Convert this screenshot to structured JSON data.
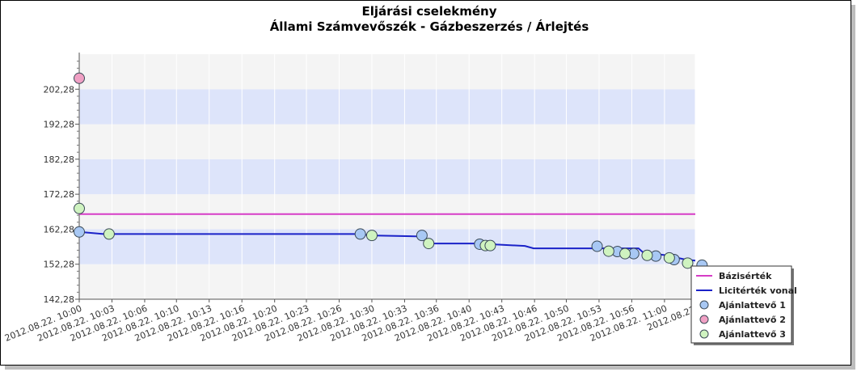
{
  "chart_data": {
    "type": "line",
    "title": "Eljárási cselekmény",
    "subtitle": "Állami Számvevőszék - Gázbeszerzés / Árlejtés",
    "xlabel": "",
    "ylabel": "",
    "ylim": [
      142.28,
      212.28
    ],
    "y_ticks": [
      "142,28",
      "152,28",
      "162,28",
      "172,28",
      "182,28",
      "192,28",
      "202,28"
    ],
    "y_tick_values": [
      142.28,
      152.28,
      162.28,
      172.28,
      182.28,
      192.28,
      202.28
    ],
    "x_range_minutes": [
      0,
      64
    ],
    "x_ticks": [
      {
        "t": 0,
        "label": "2012.08.22. 10:00"
      },
      {
        "t": 3.4,
        "label": "2012.08.22. 10:03"
      },
      {
        "t": 6.8,
        "label": "2012.08.22. 10:06"
      },
      {
        "t": 10.1,
        "label": "2012.08.22. 10:10"
      },
      {
        "t": 13.5,
        "label": "2012.08.22. 10:13"
      },
      {
        "t": 16.9,
        "label": "2012.08.22. 10:16"
      },
      {
        "t": 20.3,
        "label": "2012.08.22. 10:20"
      },
      {
        "t": 23.6,
        "label": "2012.08.22. 10:23"
      },
      {
        "t": 27.0,
        "label": "2012.08.22. 10:26"
      },
      {
        "t": 30.4,
        "label": "2012.08.22. 10:30"
      },
      {
        "t": 33.8,
        "label": "2012.08.22. 10:33"
      },
      {
        "t": 37.1,
        "label": "2012.08.22. 10:36"
      },
      {
        "t": 40.5,
        "label": "2012.08.22. 10:40"
      },
      {
        "t": 43.9,
        "label": "2012.08.22. 10:43"
      },
      {
        "t": 47.3,
        "label": "2012.08.22. 10:46"
      },
      {
        "t": 50.6,
        "label": "2012.08.22. 10:50"
      },
      {
        "t": 54.0,
        "label": "2012.08.22. 10:53"
      },
      {
        "t": 57.4,
        "label": "2012.08.22. 10:56"
      },
      {
        "t": 60.8,
        "label": "2012.08.22. 11:00"
      },
      {
        "t": 64.0,
        "label": "2012.08.22."
      }
    ],
    "grid": true,
    "legend_position": "bottom-right",
    "baseline": {
      "name": "Bázisérték",
      "value": 166.6,
      "color": "#d63cc6"
    },
    "bid_line": {
      "name": "Licitérték vonal",
      "color": "#1a22c8",
      "points": [
        [
          0,
          161.5
        ],
        [
          2.6,
          160.9
        ],
        [
          29.2,
          160.9
        ],
        [
          30.2,
          160.5
        ],
        [
          35.6,
          160.2
        ],
        [
          36.3,
          158.2
        ],
        [
          42.0,
          158.2
        ],
        [
          43.4,
          157.9
        ],
        [
          46.3,
          157.5
        ],
        [
          47.2,
          156.8
        ],
        [
          58.1,
          156.8
        ],
        [
          58.6,
          155.6
        ],
        [
          59.5,
          155.3
        ],
        [
          60.8,
          154.9
        ],
        [
          63.0,
          153.6
        ],
        [
          64.0,
          153.3
        ]
      ]
    },
    "series": [
      {
        "name": "Ajánlattevő 1",
        "color": "#a8c8f4",
        "x": [
          0,
          29.2,
          35.6,
          41.6,
          53.8,
          55.9,
          57.6,
          59.9,
          61.8,
          64.7,
          65.6,
          66.4
        ],
        "y": [
          161.5,
          160.9,
          160.5,
          158.0,
          157.4,
          155.9,
          155.3,
          154.6,
          153.6,
          152.0,
          150.9,
          150.4
        ]
      },
      {
        "name": "Ajánlattevő 2",
        "color": "#f0a0c4",
        "x": [
          0
        ],
        "y": [
          205.4
        ]
      },
      {
        "name": "Ajánlattevő 3",
        "color": "#cff3c0",
        "x": [
          0,
          3.1,
          30.4,
          36.3,
          42.2,
          42.7,
          55.0,
          56.7,
          59.0,
          61.3,
          63.2,
          65.2,
          66.0,
          67.0
        ],
        "y": [
          168.2,
          160.9,
          160.5,
          158.2,
          157.6,
          157.6,
          156.0,
          155.3,
          154.8,
          154.1,
          152.6,
          151.1,
          150.3,
          149.5
        ]
      }
    ]
  }
}
